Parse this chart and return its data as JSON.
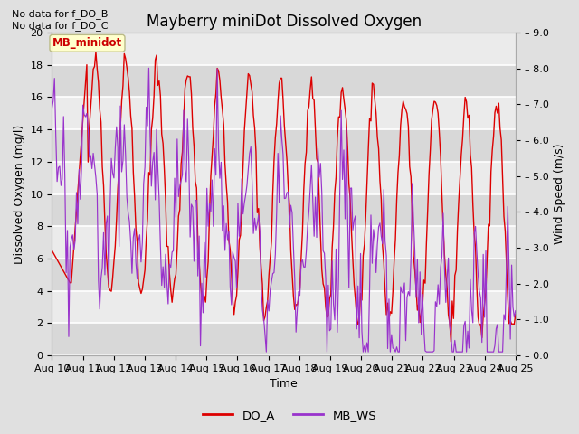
{
  "title": "Mayberry miniDot Dissolved Oxygen",
  "xlabel": "Time",
  "ylabel_left": "Dissolved Oxygen (mg/l)",
  "ylabel_right": "Wind Speed (m/s)",
  "text_no_data_1": "No data for f_DO_B",
  "text_no_data_2": "No data for f_DO_C",
  "legend_box_label": "MB_minidot",
  "legend_entries": [
    "DO_A",
    "MB_WS"
  ],
  "legend_colors": [
    "#dd0000",
    "#9933cc"
  ],
  "do_color": "#dd0000",
  "ws_color": "#9933cc",
  "ylim_left": [
    0,
    20
  ],
  "ylim_right": [
    0.0,
    9.0
  ],
  "yticks_left": [
    0,
    2,
    4,
    6,
    8,
    10,
    12,
    14,
    16,
    18,
    20
  ],
  "yticks_right": [
    0.0,
    1.0,
    2.0,
    3.0,
    4.0,
    5.0,
    6.0,
    7.0,
    8.0,
    9.0
  ],
  "xtick_labels": [
    "Aug 10",
    "Aug 11",
    "Aug 12",
    "Aug 13",
    "Aug 14",
    "Aug 15",
    "Aug 16",
    "Aug 17",
    "Aug 18",
    "Aug 19",
    "Aug 20",
    "Aug 21",
    "Aug 22",
    "Aug 23",
    "Aug 24",
    "Aug 25"
  ],
  "fig_bg": "#e0e0e0",
  "plot_bg": "#ebebeb",
  "grid_color": "#ffffff",
  "stripe_color": "#d8d8d8",
  "title_fontsize": 12,
  "axis_label_fontsize": 9,
  "tick_fontsize": 8
}
